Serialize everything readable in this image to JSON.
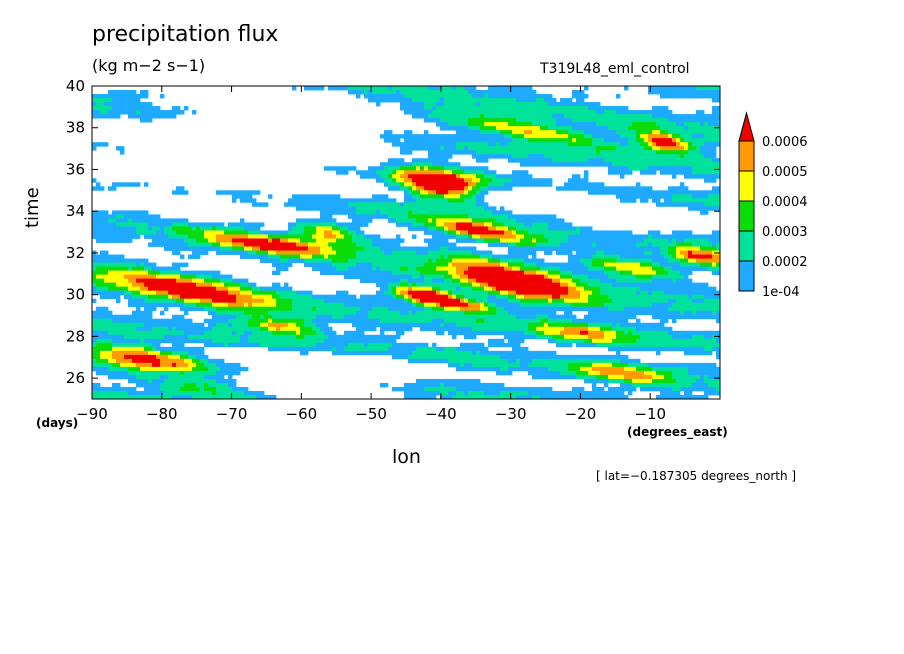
{
  "header": {
    "title": "precipitation flux",
    "subtitle": "(kg m−2 s−1)",
    "run_label": "T319L48_eml_control"
  },
  "axes": {
    "ylabel": "time",
    "yunit": "(days)",
    "xlabel": "lon",
    "xunit": "(degrees_east)"
  },
  "footnote": "[ lat=−0.187305 degrees_north ]",
  "chart_data": {
    "type": "heatmap",
    "title": "precipitation flux",
    "subtitle": "(kg m−2 s−1)",
    "xlabel": "lon",
    "ylabel": "time",
    "xlim": [
      -90,
      0
    ],
    "ylim": [
      25,
      40
    ],
    "x_ticks": [
      -90,
      -80,
      -70,
      -60,
      -50,
      -40,
      -30,
      -20,
      -10
    ],
    "x_tick_labels": [
      "−90",
      "−80",
      "−70",
      "−60",
      "−50",
      "−40",
      "−30",
      "−20",
      "−10"
    ],
    "y_ticks": [
      26,
      28,
      30,
      32,
      34,
      36,
      38,
      40
    ],
    "y_tick_labels": [
      "26",
      "28",
      "30",
      "32",
      "34",
      "36",
      "38",
      "40"
    ],
    "colorbar": {
      "levels": [
        0.0001,
        0.0002,
        0.0003,
        0.0004,
        0.0005,
        0.0006
      ],
      "labels": [
        "1e-04",
        "0.0002",
        "0.0003",
        "0.0004",
        "0.0005",
        "0.0006"
      ],
      "colors": [
        "#ffffff",
        "#1eaaff",
        "#00e29a",
        "#0adc0a",
        "#ffff00",
        "#ff9a00",
        "#f00000"
      ],
      "extend": "max"
    },
    "features": [
      {
        "lon": -40,
        "time": 35.2,
        "amp": 0.00075,
        "slope": -0.06,
        "len": 6,
        "wid": 0.8
      },
      {
        "lon": -29,
        "time": 30.6,
        "amp": 0.00072,
        "slope": -0.07,
        "len": 9,
        "wid": 0.7
      },
      {
        "lon": -42,
        "time": 30.0,
        "amp": 0.0006,
        "slope": -0.05,
        "len": 5,
        "wid": 0.4
      },
      {
        "lon": -34,
        "time": 33.0,
        "amp": 0.00055,
        "slope": -0.06,
        "len": 8,
        "wid": 0.4
      },
      {
        "lon": -8,
        "time": 37.3,
        "amp": 0.00062,
        "slope": -0.06,
        "len": 4,
        "wid": 0.4
      },
      {
        "lon": -27,
        "time": 37.8,
        "amp": 0.00045,
        "slope": -0.05,
        "len": 12,
        "wid": 0.4
      },
      {
        "lon": -76,
        "time": 30.2,
        "amp": 0.00055,
        "slope": -0.06,
        "len": 11,
        "wid": 0.6
      },
      {
        "lon": -65,
        "time": 32.4,
        "amp": 0.0005,
        "slope": -0.04,
        "len": 10,
        "wid": 0.4
      },
      {
        "lon": -56,
        "time": 33.0,
        "amp": 0.00042,
        "slope": -0.05,
        "len": 4,
        "wid": 0.5
      },
      {
        "lon": -82,
        "time": 27.0,
        "amp": 0.0005,
        "slope": -0.05,
        "len": 8,
        "wid": 0.5
      },
      {
        "lon": -63,
        "time": 28.5,
        "amp": 0.00045,
        "slope": -0.04,
        "len": 6,
        "wid": 0.4
      },
      {
        "lon": -13,
        "time": 31.3,
        "amp": 0.00045,
        "slope": -0.05,
        "len": 6,
        "wid": 0.4
      },
      {
        "lon": -3,
        "time": 31.8,
        "amp": 0.0005,
        "slope": -0.04,
        "len": 4,
        "wid": 0.4
      },
      {
        "lon": -20,
        "time": 28.2,
        "amp": 0.0004,
        "slope": -0.04,
        "len": 6,
        "wid": 0.4
      },
      {
        "lon": -14,
        "time": 26.2,
        "amp": 0.0004,
        "slope": -0.05,
        "len": 7,
        "wid": 0.4
      },
      {
        "lon": -73,
        "time": 25.5,
        "amp": 0.00035,
        "slope": -0.04,
        "len": 10,
        "wid": 0.4
      },
      {
        "lon": -37,
        "time": 29.5,
        "amp": 0.00045,
        "slope": -0.05,
        "len": 6,
        "wid": 0.3
      }
    ],
    "dry_regions": [
      {
        "lon": -72,
        "time": 36.5,
        "rx": 20,
        "ry": 2.2
      },
      {
        "lon": -60,
        "time": 38.2,
        "rx": 12,
        "ry": 1.3
      },
      {
        "lon": -28,
        "time": 34.7,
        "rx": 14,
        "ry": 0.6
      },
      {
        "lon": -58,
        "time": 26.0,
        "rx": 14,
        "ry": 1.1
      },
      {
        "lon": -12,
        "time": 33.6,
        "rx": 9,
        "ry": 0.7
      }
    ]
  }
}
